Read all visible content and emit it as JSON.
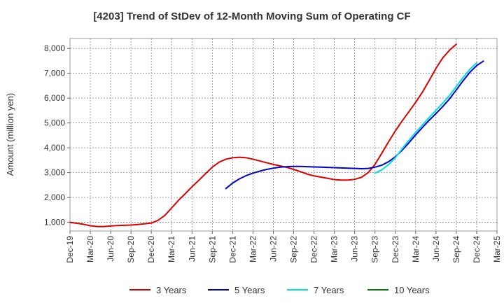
{
  "chart_data": {
    "type": "line",
    "title": "[4203]  Trend of StDev of 12-Month Moving Sum of Operating CF",
    "ylabel": "Amount (million yen)",
    "xlabel": "",
    "ylim": [
      650,
      8400
    ],
    "yticks": [
      1000,
      2000,
      3000,
      4000,
      5000,
      6000,
      7000,
      8000
    ],
    "ytick_labels": [
      "1,000",
      "2,000",
      "3,000",
      "4,000",
      "5,000",
      "6,000",
      "7,000",
      "8,000"
    ],
    "xticks": [
      "Dec-19",
      "Mar-20",
      "Jun-20",
      "Sep-20",
      "Dec-20",
      "Mar-21",
      "Jun-21",
      "Sep-21",
      "Dec-21",
      "Mar-22",
      "Jun-22",
      "Sep-22",
      "Dec-22",
      "Mar-23",
      "Jun-23",
      "Sep-23",
      "Dec-23",
      "Mar-24",
      "Jun-24",
      "Sep-24",
      "Dec-24",
      "Mar-25"
    ],
    "grid": true,
    "legend_position": "bottom",
    "series": [
      {
        "name": "3 Years",
        "color": "#dd0000",
        "start_month": "Dec-19",
        "values": [
          1000,
          960,
          920,
          860,
          830,
          830,
          850,
          870,
          880,
          890,
          910,
          940,
          970,
          1080,
          1280,
          1580,
          1880,
          2150,
          2430,
          2690,
          2960,
          3220,
          3420,
          3540,
          3600,
          3620,
          3600,
          3540,
          3470,
          3400,
          3330,
          3270,
          3210,
          3130,
          3040,
          2940,
          2870,
          2820,
          2770,
          2720,
          2700,
          2700,
          2730,
          2810,
          3000,
          3330,
          3780,
          4240,
          4680,
          5080,
          5450,
          5830,
          6240,
          6710,
          7200,
          7620,
          7930,
          8170
        ]
      },
      {
        "name": "5 Years",
        "color": "#0000cc",
        "start_month": "Nov-21",
        "values": [
          2360,
          2580,
          2750,
          2880,
          2980,
          3060,
          3130,
          3180,
          3220,
          3240,
          3250,
          3250,
          3240,
          3230,
          3220,
          3210,
          3200,
          3190,
          3180,
          3170,
          3160,
          3170,
          3220,
          3300,
          3440,
          3640,
          3900,
          4200,
          4520,
          4820,
          5110,
          5380,
          5660,
          5970,
          6330,
          6700,
          7040,
          7310,
          7490
        ]
      },
      {
        "name": "7 Years",
        "color": "#00e0e0",
        "start_month": "Sep-23",
        "values": [
          2980,
          3110,
          3320,
          3600,
          3960,
          4300,
          4620,
          4920,
          5220,
          5510,
          5800,
          6110,
          6470,
          6830,
          7160,
          7420
        ]
      },
      {
        "name": "10 Years",
        "color": "#008000",
        "start_month": "Dec-19",
        "values": []
      }
    ]
  }
}
